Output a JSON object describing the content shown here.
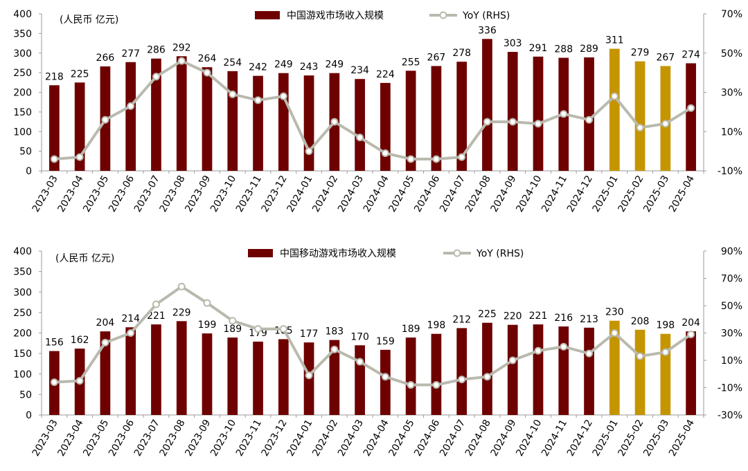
{
  "colors": {
    "bar": "#6E0000",
    "bar_forecast": "#C59500",
    "line": "#B9B9AE",
    "marker_fill": "#FFFFFF",
    "axis": "#9A9A9A"
  },
  "chart_data": [
    {
      "type": "bar",
      "unit_label": "(人民币 亿元)",
      "legend_bar": "中国游戏市场收入规模",
      "legend_line": "YoY (RHS)",
      "legend_placement": "top",
      "categories": [
        "2023-03",
        "2023-04",
        "2023-05",
        "2023-06",
        "2023-07",
        "2023-08",
        "2023-09",
        "2023-10",
        "2023-11",
        "2023-12",
        "2024-01",
        "2024-02",
        "2024-03",
        "2024-04",
        "2024-05",
        "2024-06",
        "2024-07",
        "2024-08",
        "2024-09",
        "2024-10",
        "2024-11",
        "2024-12",
        "2025-01",
        "2025-02",
        "2025-03",
        "2025-04"
      ],
      "series": [
        {
          "name": "中国游戏市场收入规模",
          "values": [
            218,
            225,
            266,
            277,
            286,
            292,
            264,
            254,
            242,
            249,
            243,
            249,
            234,
            224,
            255,
            267,
            278,
            336,
            303,
            291,
            288,
            289,
            311,
            279,
            267,
            274
          ]
        },
        {
          "name": "YoY (RHS)",
          "values": [
            -4,
            -3,
            16,
            23,
            38,
            46,
            40,
            29,
            26,
            28,
            0,
            15,
            7,
            -1,
            -4,
            -4,
            -3,
            15,
            15,
            14,
            19,
            16,
            28,
            12,
            14,
            22
          ]
        }
      ],
      "highlight_indices": [
        22,
        23,
        24
      ],
      "left_axis": {
        "min": 0,
        "max": 400,
        "ticks": [
          "0",
          "50",
          "100",
          "150",
          "200",
          "250",
          "300",
          "350",
          "400"
        ]
      },
      "right_axis": {
        "min": -10,
        "max": 70,
        "ticks": [
          "-10%",
          "10%",
          "30%",
          "50%",
          "70%"
        ]
      },
      "grid": false
    },
    {
      "type": "bar",
      "unit_label": "(人民币 亿元)",
      "legend_bar": "中国移动游戏市场收入规模",
      "legend_line": "YoY (RHS)",
      "legend_placement": "top",
      "categories": [
        "2023-03",
        "2023-04",
        "2023-05",
        "2023-06",
        "2023-07",
        "2023-08",
        "2023-09",
        "2023-10",
        "2023-11",
        "2023-12",
        "2024-01",
        "2024-02",
        "2024-03",
        "2024-04",
        "2024-05",
        "2024-06",
        "2024-07",
        "2024-08",
        "2024-09",
        "2024-10",
        "2024-11",
        "2024-12",
        "2025-01",
        "2025-02",
        "2025-03",
        "2025-04"
      ],
      "series": [
        {
          "name": "中国移动游戏市场收入规模",
          "values": [
            156,
            162,
            204,
            214,
            221,
            229,
            199,
            189,
            179,
            185,
            177,
            183,
            170,
            159,
            189,
            198,
            212,
            225,
            220,
            221,
            216,
            213,
            230,
            208,
            198,
            204
          ]
        },
        {
          "name": "YoY (RHS)",
          "values": [
            -6,
            -5,
            23,
            30,
            51,
            64,
            52,
            39,
            33,
            33,
            -1,
            18,
            9,
            -2,
            -8,
            -8,
            -4,
            -2,
            10,
            17,
            20,
            15,
            30,
            13,
            16,
            29
          ]
        }
      ],
      "highlight_indices": [
        22,
        23,
        24
      ],
      "left_axis": {
        "min": 0,
        "max": 400,
        "ticks": [
          "0",
          "50",
          "100",
          "150",
          "200",
          "250",
          "300",
          "350",
          "400"
        ]
      },
      "right_axis": {
        "min": -30,
        "max": 90,
        "ticks": [
          "-30%",
          "-10%",
          "10%",
          "30%",
          "50%",
          "70%",
          "90%"
        ]
      },
      "grid": false
    }
  ]
}
